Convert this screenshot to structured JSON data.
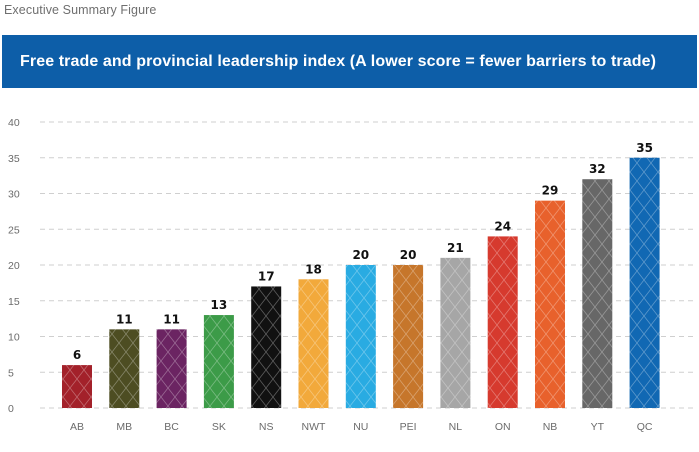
{
  "header": {
    "supertitle": "Executive Summary Figure",
    "banner_title": "Free trade and provincial leadership index (A lower score = fewer barriers to trade)",
    "banner_color": "#0d5ea8"
  },
  "chart_data": {
    "type": "bar",
    "title": "Free trade and provincial leadership index (A lower score = fewer barriers to trade)",
    "xlabel": "",
    "ylabel": "",
    "ylim": [
      0,
      40
    ],
    "yticks": [
      0,
      5,
      10,
      15,
      20,
      25,
      30,
      35,
      40
    ],
    "grid": true,
    "legend": "none",
    "categories": [
      "AB",
      "MB",
      "BC",
      "SK",
      "NS",
      "NWT",
      "NU",
      "PEI",
      "NL",
      "ON",
      "NB",
      "YT",
      "QC"
    ],
    "values": [
      6,
      11,
      11,
      13,
      17,
      18,
      20,
      20,
      21,
      24,
      29,
      32,
      35
    ],
    "value_labels": [
      "6",
      "11",
      "11",
      "13",
      "17",
      "18",
      "20",
      "20",
      "21",
      "24",
      "29",
      "32",
      "35"
    ],
    "colors": [
      "#a3212a",
      "#4d4d22",
      "#6b2462",
      "#3c9b48",
      "#111111",
      "#f2a93b",
      "#29abe2",
      "#c6762b",
      "#a6a6a6",
      "#d63a2e",
      "#e8612c",
      "#676767",
      "#1168b3"
    ]
  }
}
